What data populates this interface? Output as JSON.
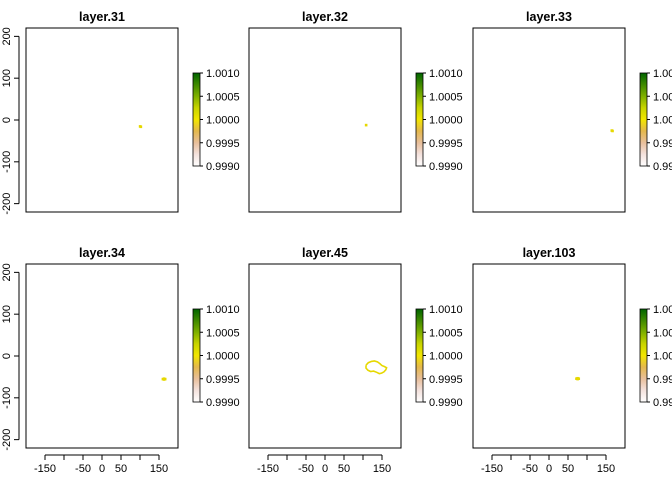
{
  "chart_data": {
    "type": "raster-panels",
    "layout": {
      "rows": 2,
      "cols": 3
    },
    "xlim": [
      -200,
      200
    ],
    "ylim": [
      -220,
      220
    ],
    "x_ticks": [
      -150,
      -100,
      -50,
      0,
      50,
      100,
      150
    ],
    "x_tick_labels": [
      "-150",
      "",
      "-50",
      "0",
      "50",
      "",
      "150"
    ],
    "y_ticks": [
      -200,
      -100,
      0,
      100,
      200
    ],
    "y_tick_labels": [
      "-200",
      "-100",
      "0",
      "100",
      "200"
    ],
    "x_axis_shown_on": "bottom row only",
    "y_axis_shown_on": "left column only",
    "legend": {
      "range": [
        0.999,
        1.001
      ],
      "ticks": [
        0.999,
        0.9995,
        1.0,
        1.0005,
        1.001
      ],
      "tick_labels": [
        "0.9990",
        "0.9995",
        "1.0000",
        "1.0005",
        "1.0010"
      ],
      "colors_high_to_low": [
        "#006400",
        "#3f8a00",
        "#7fb000",
        "#c8d400",
        "#f2e600",
        "#e4b84d",
        "#e8bf9b",
        "#f4e2dd",
        "#ffffff"
      ]
    },
    "cell_color": "#e6d800",
    "panels": [
      {
        "title": "layer.31",
        "cells": [
          [
            100,
            -15
          ],
          [
            102,
            -16
          ]
        ]
      },
      {
        "title": "layer.32",
        "cells": [
          [
            108,
            -12
          ]
        ]
      },
      {
        "title": "layer.33",
        "cells": [
          [
            165,
            -25
          ],
          [
            167,
            -26
          ]
        ]
      },
      {
        "title": "layer.34",
        "cells": [
          [
            160,
            -55
          ],
          [
            163,
            -56
          ],
          [
            166,
            -55
          ],
          [
            163,
            -54
          ]
        ]
      },
      {
        "title": "layer.45",
        "outline": [
          [
            108,
            -22
          ],
          [
            114,
            -16
          ],
          [
            122,
            -13
          ],
          [
            130,
            -12
          ],
          [
            138,
            -14
          ],
          [
            144,
            -18
          ],
          [
            150,
            -23
          ],
          [
            156,
            -25
          ],
          [
            162,
            -28
          ],
          [
            160,
            -33
          ],
          [
            155,
            -38
          ],
          [
            149,
            -41
          ],
          [
            143,
            -42
          ],
          [
            136,
            -39
          ],
          [
            128,
            -36
          ],
          [
            120,
            -37
          ],
          [
            113,
            -34
          ],
          [
            108,
            -29
          ],
          [
            108,
            -22
          ]
        ]
      },
      {
        "title": "layer.103",
        "cells": [
          [
            72,
            -54
          ],
          [
            75,
            -55
          ],
          [
            78,
            -54
          ],
          [
            75,
            -53
          ]
        ]
      }
    ]
  }
}
